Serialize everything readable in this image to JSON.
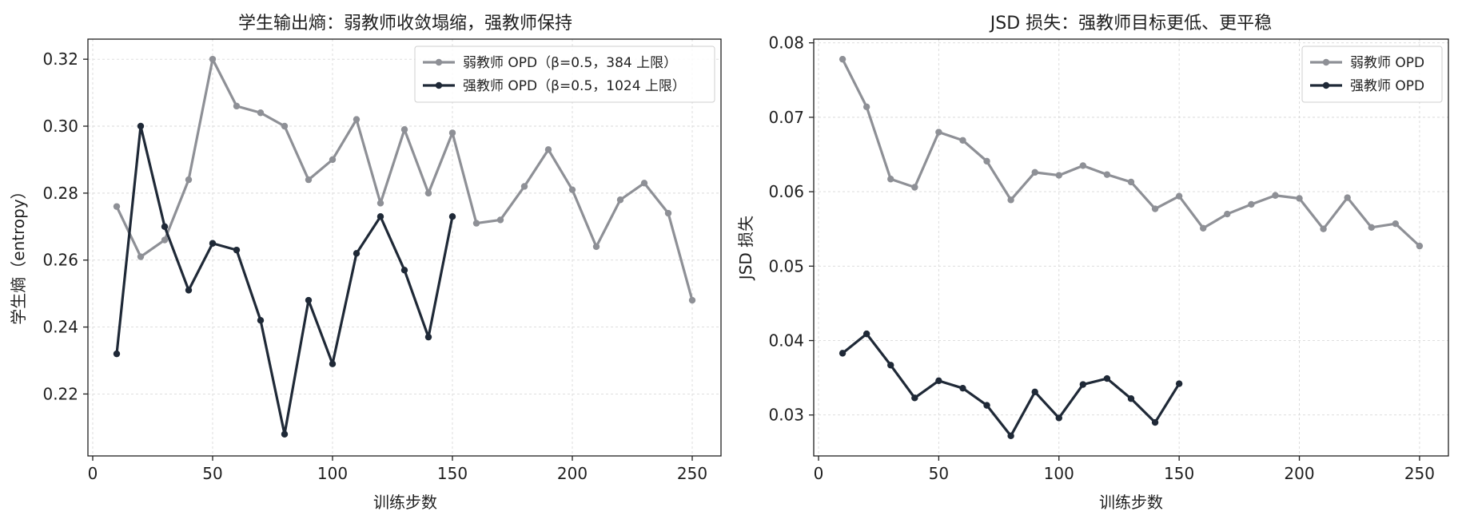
{
  "chart_data": [
    {
      "type": "line",
      "title": "学生输出熵：弱教师收敛塌缩，强教师保持",
      "xlabel": "训练步数",
      "ylabel": "学生熵（entropy）",
      "xlim": [
        -2,
        262
      ],
      "ylim": [
        0.2015,
        0.326
      ],
      "xticks": [
        0,
        50,
        100,
        150,
        200,
        250
      ],
      "yticks": [
        0.22,
        0.24,
        0.26,
        0.28,
        0.3,
        0.32
      ],
      "ytick_decimals": 2,
      "grid": true,
      "legend_position": "top-right",
      "series": [
        {
          "name": "弱教师 OPD（β=0.5，384 上限）",
          "color": "#8e9096",
          "x": [
            10,
            20,
            30,
            40,
            50,
            60,
            70,
            80,
            90,
            100,
            110,
            120,
            130,
            140,
            150,
            160,
            170,
            180,
            190,
            200,
            210,
            220,
            230,
            240,
            250
          ],
          "y": [
            0.276,
            0.261,
            0.266,
            0.284,
            0.32,
            0.306,
            0.304,
            0.3,
            0.284,
            0.29,
            0.302,
            0.277,
            0.299,
            0.28,
            0.298,
            0.271,
            0.272,
            0.282,
            0.293,
            0.281,
            0.264,
            0.278,
            0.283,
            0.274,
            0.248
          ]
        },
        {
          "name": "强教师 OPD（β=0.5，1024 上限）",
          "color": "#1f2937",
          "x": [
            10,
            20,
            30,
            40,
            50,
            60,
            70,
            80,
            90,
            100,
            110,
            120,
            130,
            140,
            150
          ],
          "y": [
            0.232,
            0.3,
            0.27,
            0.251,
            0.265,
            0.263,
            0.242,
            0.208,
            0.248,
            0.229,
            0.262,
            0.273,
            0.257,
            0.237,
            0.273
          ]
        }
      ]
    },
    {
      "type": "line",
      "title": "JSD 损失：强教师目标更低、更平稳",
      "xlabel": "训练步数",
      "ylabel": "JSD 损失",
      "xlim": [
        -2,
        262
      ],
      "ylim": [
        0.0245,
        0.0805
      ],
      "xticks": [
        0,
        50,
        100,
        150,
        200,
        250
      ],
      "yticks": [
        0.03,
        0.04,
        0.05,
        0.06,
        0.07,
        0.08
      ],
      "ytick_decimals": 2,
      "grid": true,
      "legend_position": "top-right",
      "series": [
        {
          "name": "弱教师 OPD",
          "color": "#8e9096",
          "x": [
            10,
            20,
            30,
            40,
            50,
            60,
            70,
            80,
            90,
            100,
            110,
            120,
            130,
            140,
            150,
            160,
            170,
            180,
            190,
            200,
            210,
            220,
            230,
            240,
            250
          ],
          "y": [
            0.0778,
            0.0714,
            0.0617,
            0.0606,
            0.068,
            0.0669,
            0.0641,
            0.0589,
            0.0626,
            0.0622,
            0.0635,
            0.0623,
            0.0613,
            0.0577,
            0.0594,
            0.0551,
            0.057,
            0.0583,
            0.0595,
            0.0591,
            0.055,
            0.0592,
            0.0552,
            0.0557,
            0.0527
          ]
        },
        {
          "name": "强教师 OPD",
          "color": "#1f2937",
          "x": [
            10,
            20,
            30,
            40,
            50,
            60,
            70,
            80,
            90,
            100,
            110,
            120,
            130,
            140,
            150
          ],
          "y": [
            0.0383,
            0.0409,
            0.0367,
            0.0323,
            0.0346,
            0.0336,
            0.0313,
            0.0272,
            0.0331,
            0.0296,
            0.0341,
            0.0349,
            0.0322,
            0.029,
            0.0342
          ]
        }
      ]
    }
  ]
}
